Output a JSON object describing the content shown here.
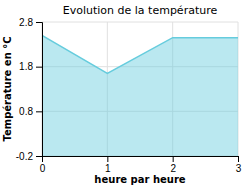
{
  "chart_data": {
    "type": "area",
    "title": "Evolution de la température",
    "xlabel": "heure par heure",
    "ylabel": "Température en °C",
    "x": [
      0,
      1,
      2,
      3
    ],
    "values": [
      2.5,
      1.65,
      2.45,
      2.45
    ],
    "color": "#66ccdd",
    "xlim": [
      0,
      3
    ],
    "ylim": [
      -0.2,
      2.8
    ],
    "xticks": [
      0,
      1,
      2,
      3
    ],
    "yticks": [
      -0.2,
      0.8,
      1.8,
      2.8
    ],
    "grid": true
  }
}
